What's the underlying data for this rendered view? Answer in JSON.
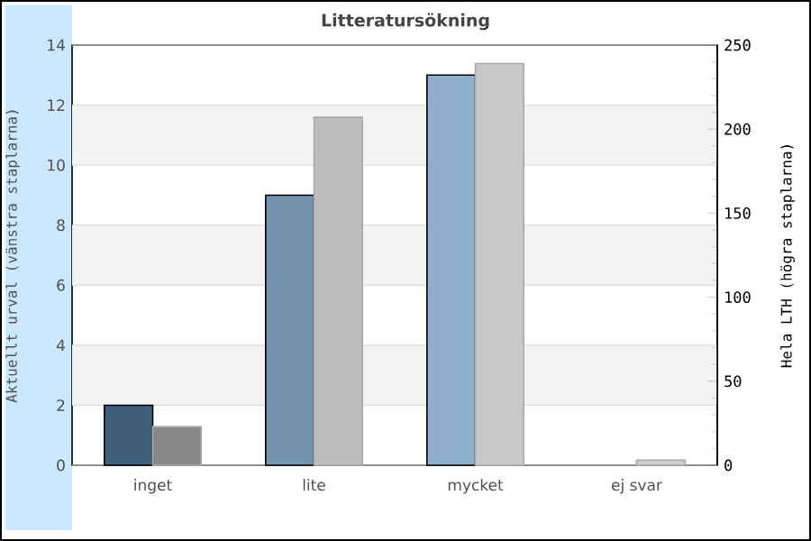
{
  "chart_data": {
    "type": "bar",
    "title": "Litteratursökning",
    "categories": [
      "inget",
      "lite",
      "mycket",
      "ej svar"
    ],
    "ylabel": "Aktuellt urval (vänstra staplarna)",
    "y2label": "Hela LTH (högra staplarna)",
    "ylim": [
      0,
      14
    ],
    "yticks": [
      0,
      2,
      4,
      6,
      8,
      10,
      12,
      14
    ],
    "y2lim": [
      0,
      250
    ],
    "y2ticks": [
      0,
      {
        "value": 10,
        "label": null
      },
      {
        "value": 20,
        "label": null
      },
      {
        "value": 30,
        "label": null
      },
      {
        "value": 40,
        "label": null
      },
      50,
      {
        "value": 60,
        "label": null
      },
      {
        "value": 70,
        "label": null
      },
      {
        "value": 80,
        "label": null
      },
      {
        "value": 90,
        "label": null
      },
      100,
      {
        "value": 110,
        "label": null
      },
      {
        "value": 120,
        "label": null
      },
      {
        "value": 130,
        "label": null
      },
      {
        "value": 140,
        "label": null
      },
      150,
      {
        "value": 160,
        "label": null
      },
      {
        "value": 170,
        "label": null
      },
      {
        "value": 180,
        "label": null
      },
      {
        "value": 190,
        "label": null
      },
      200,
      {
        "value": 210,
        "label": null
      },
      {
        "value": 220,
        "label": null
      },
      {
        "value": 230,
        "label": null
      },
      {
        "value": 240,
        "label": null
      },
      250
    ],
    "grid": "y",
    "series": [
      {
        "colors": [
          "#3f5f7a",
          "#7393ae",
          "#8fb0cc",
          "#a8c4dc"
        ],
        "values": [
          2,
          9,
          13,
          0
        ]
      },
      {
        "axis": "y2",
        "colors": [
          "#888888",
          "#bdbdbd",
          "#c8c8c8",
          "#d0d0d0"
        ],
        "values": [
          23,
          207,
          239,
          3
        ]
      }
    ]
  }
}
